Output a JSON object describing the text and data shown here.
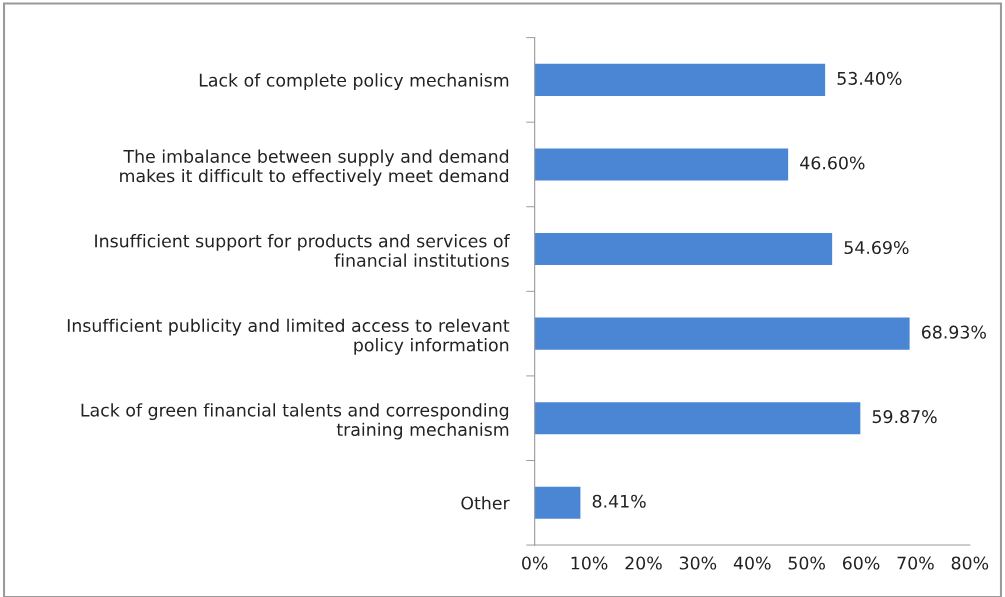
{
  "chart_data": {
    "type": "bar",
    "orientation": "horizontal",
    "categories": [
      "Lack of complete policy mechanism",
      "The imbalance between supply and demand\nmakes it difficult to effectively meet demand",
      "Insufficient support for products and services of\nfinancial institutions",
      "Insufficient publicity and limited access to relevant\npolicy information",
      "Lack of green financial talents and corresponding\ntraining mechanism",
      "Other"
    ],
    "values": [
      53.4,
      46.6,
      54.69,
      68.93,
      59.87,
      8.41
    ],
    "value_labels": [
      "53.40%",
      "46.60%",
      "54.69%",
      "68.93%",
      "59.87%",
      "8.41%"
    ],
    "color": "#4a86d4",
    "xlim": [
      0,
      80
    ],
    "xticks": [
      {
        "value": 0,
        "label": "0%"
      },
      {
        "value": 10,
        "label": "10%"
      },
      {
        "value": 20,
        "label": "20%"
      },
      {
        "value": 30,
        "label": "30%"
      },
      {
        "value": 40,
        "label": "40%"
      },
      {
        "value": 50,
        "label": "50%"
      },
      {
        "value": 60,
        "label": "60%"
      },
      {
        "value": 70,
        "label": "70%"
      },
      {
        "value": 80,
        "label": "80%"
      }
    ],
    "grid": false,
    "legend": false
  }
}
